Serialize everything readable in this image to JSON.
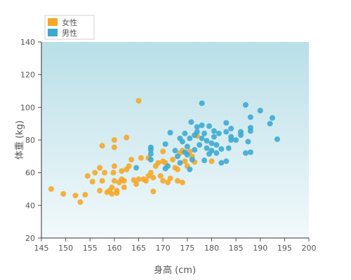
{
  "chart_data": {
    "type": "scatter",
    "xlabel": "身高 (cm)",
    "ylabel": "体重 (kg)",
    "xlim": [
      145,
      200
    ],
    "ylim": [
      20,
      140
    ],
    "xticks": [
      145,
      150,
      155,
      160,
      165,
      170,
      175,
      180,
      185,
      190,
      195,
      200
    ],
    "yticks": [
      20,
      40,
      60,
      80,
      100,
      120,
      140
    ],
    "legend_position": "top-left",
    "background": {
      "top": "#b9dfe7",
      "bottom": "#f2f9fb"
    },
    "series": [
      {
        "name": "女性",
        "color": "#f5a623",
        "points": [
          [
            147,
            50
          ],
          [
            149.5,
            47
          ],
          [
            152,
            46
          ],
          [
            153,
            42
          ],
          [
            154,
            46.5
          ],
          [
            154.5,
            58
          ],
          [
            155.5,
            54.5
          ],
          [
            156,
            60
          ],
          [
            157,
            63
          ],
          [
            157.5,
            55
          ],
          [
            157.5,
            76.5
          ],
          [
            157,
            49
          ],
          [
            158,
            60
          ],
          [
            158.5,
            48
          ],
          [
            159,
            49
          ],
          [
            159.5,
            47
          ],
          [
            159.5,
            51
          ],
          [
            159.8,
            60
          ],
          [
            160,
            55
          ],
          [
            160,
            64
          ],
          [
            160,
            75.5
          ],
          [
            160,
            80
          ],
          [
            160.5,
            47.5
          ],
          [
            160.5,
            49
          ],
          [
            161,
            54
          ],
          [
            161.5,
            56
          ],
          [
            161.5,
            61
          ],
          [
            162,
            51
          ],
          [
            162,
            55
          ],
          [
            162.5,
            62
          ],
          [
            162.5,
            81.5
          ],
          [
            163,
            64
          ],
          [
            163.5,
            68
          ],
          [
            164,
            55.5
          ],
          [
            164.5,
            53
          ],
          [
            165,
            56
          ],
          [
            165,
            104
          ],
          [
            165.5,
            69
          ],
          [
            166,
            56
          ],
          [
            166.5,
            55
          ],
          [
            167,
            58
          ],
          [
            167,
            69
          ],
          [
            167.5,
            60
          ],
          [
            168,
            48.5
          ],
          [
            168,
            57
          ],
          [
            168.5,
            64
          ],
          [
            169,
            66
          ],
          [
            169.5,
            58
          ],
          [
            170,
            55
          ],
          [
            170,
            67
          ],
          [
            170,
            73
          ],
          [
            170.5,
            66
          ],
          [
            171,
            54
          ],
          [
            171.5,
            56.5
          ],
          [
            172,
            68
          ],
          [
            172.5,
            63
          ],
          [
            173,
            55
          ],
          [
            173,
            62
          ],
          [
            173.5,
            72
          ],
          [
            174,
            54
          ],
          [
            174,
            73.5
          ],
          [
            174.5,
            67
          ],
          [
            175,
            64
          ],
          [
            175.5,
            73
          ],
          [
            176,
            70
          ],
          [
            176.5,
            66.5
          ],
          [
            177,
            82.5
          ],
          [
            180,
            67
          ]
        ]
      },
      {
        "name": "男性",
        "color": "#3aa8d0",
        "points": [
          [
            164.5,
            63
          ],
          [
            167.5,
            68
          ],
          [
            167.5,
            71.5
          ],
          [
            167.5,
            74
          ],
          [
            167.5,
            75.5
          ],
          [
            170.5,
            62.5
          ],
          [
            170.5,
            77.5
          ],
          [
            171,
            64
          ],
          [
            171.5,
            84.5
          ],
          [
            172.5,
            73.5
          ],
          [
            173,
            70
          ],
          [
            173.5,
            81
          ],
          [
            173.5,
            66
          ],
          [
            174,
            79
          ],
          [
            174.5,
            84
          ],
          [
            174.5,
            72.5
          ],
          [
            175,
            71
          ],
          [
            175,
            76
          ],
          [
            175.5,
            81
          ],
          [
            175.5,
            62
          ],
          [
            175.8,
            91
          ],
          [
            176,
            68
          ],
          [
            176.5,
            74
          ],
          [
            176.5,
            83
          ],
          [
            177,
            85
          ],
          [
            177,
            88
          ],
          [
            177.5,
            77
          ],
          [
            178,
            81
          ],
          [
            178,
            89
          ],
          [
            178,
            102.5
          ],
          [
            178.5,
            84
          ],
          [
            178.5,
            67.5
          ],
          [
            179,
            75
          ],
          [
            179,
            79.5
          ],
          [
            179.5,
            71.5
          ],
          [
            179.5,
            88.5
          ],
          [
            180,
            73.5
          ],
          [
            180,
            78
          ],
          [
            180.5,
            82
          ],
          [
            180.5,
            85.5
          ],
          [
            181,
            77
          ],
          [
            181,
            72
          ],
          [
            181.5,
            84
          ],
          [
            182,
            74.5
          ],
          [
            182,
            66
          ],
          [
            183,
            67
          ],
          [
            183,
            85
          ],
          [
            183,
            90.5
          ],
          [
            183.5,
            75
          ],
          [
            184,
            80
          ],
          [
            184,
            82
          ],
          [
            184,
            87
          ],
          [
            185,
            80
          ],
          [
            186,
            85
          ],
          [
            186,
            83
          ],
          [
            187,
            72
          ],
          [
            187,
            101.5
          ],
          [
            187.5,
            79
          ],
          [
            188,
            72.5
          ],
          [
            188,
            85.5
          ],
          [
            188,
            87.5
          ],
          [
            188,
            94
          ],
          [
            190,
            98
          ],
          [
            192,
            90
          ],
          [
            192.5,
            93.5
          ],
          [
            193.5,
            80.5
          ]
        ]
      }
    ]
  }
}
